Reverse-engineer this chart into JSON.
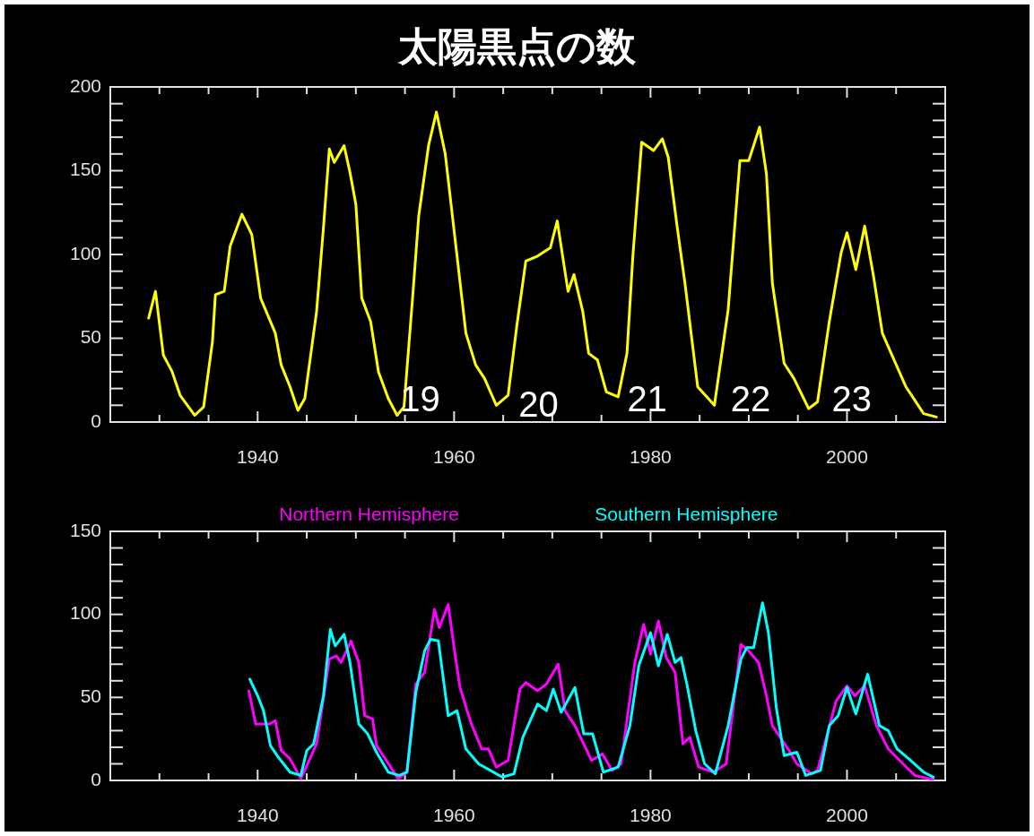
{
  "chart_data": [
    {
      "type": "line",
      "title": "太陽黒点の数",
      "xlim": [
        1925,
        2010
      ],
      "ylim": [
        0,
        200
      ],
      "grid": false,
      "marker": "none",
      "line_style": "solid",
      "xticks": [
        {
          "value": 1925,
          "label": null
        },
        {
          "value": 1930,
          "label": null
        },
        {
          "value": 1935,
          "label": null
        },
        1940,
        {
          "value": 1945,
          "label": null
        },
        {
          "value": 1950,
          "label": null
        },
        {
          "value": 1955,
          "label": null
        },
        1960,
        {
          "value": 1965,
          "label": null
        },
        {
          "value": 1970,
          "label": null
        },
        {
          "value": 1975,
          "label": null
        },
        1980,
        {
          "value": 1985,
          "label": null
        },
        {
          "value": 1990,
          "label": null
        },
        {
          "value": 1995,
          "label": null
        },
        2000,
        {
          "value": 2005,
          "label": null
        },
        {
          "value": 2010,
          "label": null
        }
      ],
      "yticks": [
        0,
        {
          "value": 10,
          "label": null
        },
        {
          "value": 20,
          "label": null
        },
        {
          "value": 30,
          "label": null
        },
        {
          "value": 40,
          "label": null
        },
        50,
        {
          "value": 60,
          "label": null
        },
        {
          "value": 70,
          "label": null
        },
        {
          "value": 80,
          "label": null
        },
        {
          "value": 90,
          "label": null
        },
        100,
        {
          "value": 110,
          "label": null
        },
        {
          "value": 120,
          "label": null
        },
        {
          "value": 130,
          "label": null
        },
        {
          "value": 140,
          "label": null
        },
        150,
        {
          "value": 160,
          "label": null
        },
        {
          "value": 170,
          "label": null
        },
        {
          "value": 180,
          "label": null
        },
        {
          "value": 190,
          "label": null
        },
        200
      ],
      "annotations": [
        "19",
        "20",
        "21",
        "22",
        "23"
      ],
      "series": [
        {
          "color": "#ffff00",
          "x": [
            1928.9,
            1929.6,
            1930.4,
            1931.3,
            1932.1,
            1933.6,
            1934.5,
            1935.4,
            1935.7,
            1936.6,
            1937.2,
            1938.4,
            1939.4,
            1940.3,
            1941.8,
            1942.4,
            1943.3,
            1944.1,
            1944.8,
            1946.0,
            1946.7,
            1947.3,
            1947.8,
            1948.8,
            1949.4,
            1950.0,
            1950.6,
            1951.5,
            1952.3,
            1953.3,
            1954.2,
            1954.9,
            1955.8,
            1956.4,
            1957.4,
            1958.2,
            1959.1,
            1960.3,
            1961.2,
            1962.2,
            1963.1,
            1964.3,
            1965.5,
            1966.4,
            1967.3,
            1968.5,
            1969.8,
            1970.5,
            1971.6,
            1972.2,
            1973.1,
            1973.7,
            1974.6,
            1975.5,
            1976.7,
            1977.6,
            1978.2,
            1979.1,
            1980.3,
            1981.2,
            1981.8,
            1982.7,
            1983.5,
            1984.8,
            1986.5,
            1987.9,
            1989.1,
            1990.0,
            1991.1,
            1991.8,
            1992.4,
            1993.6,
            1994.6,
            1996.1,
            1997.0,
            1998.2,
            1999.4,
            2000.0,
            2000.9,
            2001.8,
            2002.7,
            2003.6,
            2004.8,
            2006.0,
            2007.8,
            2009.1
          ],
          "values": [
            62,
            78,
            40,
            30,
            16,
            4,
            9,
            48,
            76,
            78,
            105,
            124,
            112,
            74,
            53,
            34,
            21,
            7,
            14,
            66,
            116,
            163,
            155,
            165,
            149,
            130,
            74,
            60,
            30,
            14,
            4,
            9,
            76,
            123,
            165,
            185,
            160,
            99,
            53,
            34,
            26,
            10,
            16,
            58,
            96,
            99,
            104,
            120,
            78,
            88,
            66,
            41,
            37,
            18,
            15,
            41,
            99,
            167,
            162,
            169,
            158,
            117,
            83,
            21,
            10,
            67,
            156,
            156,
            176,
            148,
            83,
            35,
            26,
            8,
            12,
            60,
            101,
            113,
            91,
            117,
            87,
            53,
            37,
            21,
            5,
            3
          ]
        }
      ]
    },
    {
      "type": "line",
      "xlim": [
        1925,
        2010
      ],
      "ylim": [
        0,
        150
      ],
      "grid": false,
      "marker": "none",
      "line_style": "solid",
      "legend": "top",
      "xticks": [
        {
          "value": 1925,
          "label": null
        },
        {
          "value": 1930,
          "label": null
        },
        {
          "value": 1935,
          "label": null
        },
        1940,
        {
          "value": 1945,
          "label": null
        },
        {
          "value": 1950,
          "label": null
        },
        {
          "value": 1955,
          "label": null
        },
        1960,
        {
          "value": 1965,
          "label": null
        },
        {
          "value": 1970,
          "label": null
        },
        {
          "value": 1975,
          "label": null
        },
        1980,
        {
          "value": 1985,
          "label": null
        },
        {
          "value": 1990,
          "label": null
        },
        {
          "value": 1995,
          "label": null
        },
        2000,
        {
          "value": 2005,
          "label": null
        },
        {
          "value": 2010,
          "label": null
        }
      ],
      "yticks": [
        0,
        {
          "value": 10,
          "label": null
        },
        {
          "value": 20,
          "label": null
        },
        {
          "value": 30,
          "label": null
        },
        {
          "value": 40,
          "label": null
        },
        50,
        {
          "value": 60,
          "label": null
        },
        {
          "value": 70,
          "label": null
        },
        {
          "value": 80,
          "label": null
        },
        {
          "value": 90,
          "label": null
        },
        100,
        {
          "value": 110,
          "label": null
        },
        {
          "value": 120,
          "label": null
        },
        {
          "value": 130,
          "label": null
        },
        {
          "value": 140,
          "label": null
        },
        150
      ],
      "series": [
        {
          "name": "Northern Hemisphere",
          "color": "#ff00ff",
          "x": [
            1939.1,
            1939.8,
            1941.2,
            1941.8,
            1942.4,
            1943.3,
            1944.4,
            1946.0,
            1947.3,
            1948.0,
            1948.5,
            1949.5,
            1950.3,
            1950.9,
            1951.7,
            1952.1,
            1953.0,
            1954.3,
            1955.2,
            1956.1,
            1957.0,
            1958.0,
            1958.5,
            1959.4,
            1960.0,
            1960.6,
            1961.7,
            1962.8,
            1963.5,
            1964.3,
            1965.5,
            1966.7,
            1967.3,
            1968.5,
            1969.4,
            1970.6,
            1971.3,
            1972.3,
            1974.0,
            1975.1,
            1976.1,
            1977.0,
            1978.4,
            1979.3,
            1980.0,
            1980.8,
            1981.6,
            1982.5,
            1983.3,
            1984.0,
            1984.9,
            1986.4,
            1987.7,
            1989.2,
            1990.0,
            1991.0,
            1991.8,
            1992.4,
            1994.0,
            1994.9,
            1996.4,
            1997.0,
            1998.9,
            2000.0,
            2000.8,
            2001.8,
            2003.0,
            2004.2,
            2005.7,
            2006.9,
            2008.4,
            2008.8
          ],
          "values": [
            54,
            34,
            34,
            36,
            18,
            13,
            1,
            22,
            73,
            75,
            71,
            84,
            71,
            39,
            37,
            21,
            13,
            1,
            5,
            58,
            65,
            103,
            92,
            106,
            80,
            56,
            35,
            19,
            19,
            8,
            12,
            55,
            59,
            54,
            58,
            70,
            42,
            33,
            12,
            16,
            6,
            10,
            71,
            94,
            76,
            96,
            74,
            65,
            22,
            26,
            8,
            5,
            10,
            82,
            78,
            71,
            51,
            33,
            19,
            10,
            4,
            6,
            48,
            57,
            51,
            57,
            33,
            19,
            10,
            3,
            1,
            1
          ]
        },
        {
          "name": "Southern Hemisphere",
          "color": "#00ffff",
          "x": [
            1939.2,
            1940.0,
            1940.6,
            1941.3,
            1942.1,
            1943.3,
            1944.4,
            1945.0,
            1945.7,
            1946.7,
            1947.4,
            1947.9,
            1948.8,
            1949.4,
            1950.3,
            1951.2,
            1952.1,
            1953.3,
            1954.4,
            1955.2,
            1956.1,
            1957.0,
            1957.6,
            1958.4,
            1959.4,
            1960.3,
            1961.2,
            1962.5,
            1963.7,
            1964.9,
            1966.1,
            1967.0,
            1968.5,
            1969.4,
            1970.1,
            1970.9,
            1972.3,
            1973.2,
            1974.1,
            1975.2,
            1976.7,
            1977.9,
            1978.8,
            1980.0,
            1980.8,
            1981.7,
            1982.5,
            1983.1,
            1983.7,
            1984.6,
            1985.5,
            1986.6,
            1987.9,
            1989.2,
            1989.8,
            1990.5,
            1991.4,
            1992.0,
            1992.8,
            1993.6,
            1994.9,
            1995.8,
            1997.3,
            1998.2,
            1999.1,
            2000.0,
            2000.9,
            2002.1,
            2003.3,
            2004.2,
            2005.1,
            2006.3,
            2007.8,
            2008.8
          ],
          "values": [
            61,
            51,
            42,
            21,
            14,
            5,
            3,
            18,
            22,
            51,
            91,
            81,
            88,
            71,
            34,
            28,
            17,
            5,
            3,
            5,
            53,
            78,
            85,
            84,
            39,
            42,
            19,
            10,
            6,
            2,
            4,
            26,
            46,
            42,
            55,
            41,
            56,
            28,
            28,
            5,
            8,
            33,
            69,
            89,
            69,
            88,
            71,
            74,
            58,
            30,
            10,
            4,
            33,
            73,
            80,
            80,
            107,
            89,
            44,
            15,
            17,
            3,
            6,
            33,
            39,
            56,
            40,
            64,
            33,
            30,
            19,
            13,
            5,
            2
          ]
        }
      ]
    }
  ]
}
